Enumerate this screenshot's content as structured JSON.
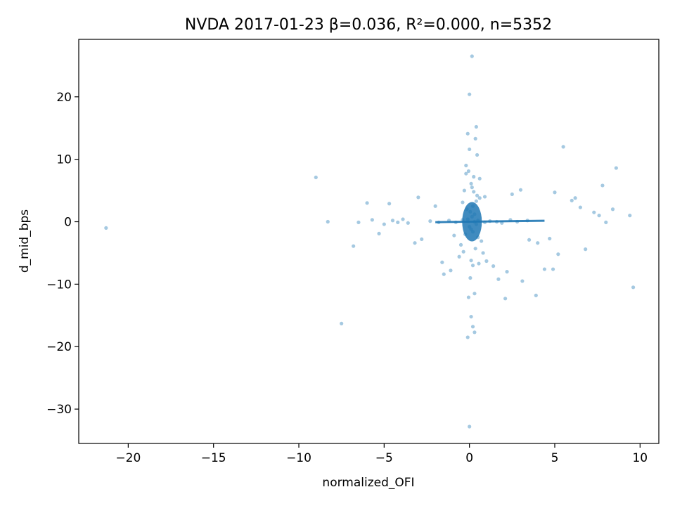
{
  "chart_data": {
    "type": "scatter",
    "title": "NVDA 2017-01-23  β=0.036, R²=0.000, n=5352",
    "xlabel": "normalized_OFI",
    "ylabel": "d_mid_bps",
    "xlim": [
      -22.9,
      11.1
    ],
    "ylim": [
      -35.5,
      29.2
    ],
    "xticks": [
      -20,
      -15,
      -10,
      -5,
      0,
      5,
      10
    ],
    "yticks": [
      -30,
      -20,
      -10,
      0,
      10,
      20
    ],
    "xtick_labels": [
      "−20",
      "−15",
      "−10",
      "−5",
      "0",
      "5",
      "10"
    ],
    "ytick_labels": [
      "−30",
      "−20",
      "−10",
      "0",
      "10",
      "20"
    ],
    "grid": false,
    "legend": "none",
    "marker_color": "#1f77b4",
    "marker_alpha": 0.4,
    "series": [
      {
        "x": [
          0.15,
          0.0,
          -0.1,
          0.4,
          5.5,
          -9.0,
          8.6,
          -21.3,
          -8.3,
          9.4,
          9.6,
          -7.5,
          7.8,
          2.1,
          3.1,
          3.9,
          4.4,
          4.9,
          5.0,
          6.2,
          6.5,
          7.6,
          8.0,
          8.4,
          -2.8,
          -4.2,
          -3.2,
          -6.8,
          -6.5,
          -5.7,
          -5.0,
          -4.5,
          -3.9,
          -3.6,
          -2.3,
          -1.8,
          -1.2,
          -0.8,
          -0.4,
          0.3,
          0.5,
          0.9,
          1.2,
          1.6,
          1.9,
          2.4,
          2.8,
          3.4,
          -0.1,
          0.0,
          0.1,
          0.2,
          0.3,
          0.35,
          -0.2,
          -0.05,
          0.25,
          0.1,
          -0.3,
          0.45,
          0.6,
          -0.4,
          0.2,
          -0.15,
          0.05,
          0.3,
          0.15,
          -0.1,
          0.4,
          0.0,
          0.1,
          0.2,
          -0.25,
          0.5,
          0.7,
          -0.5,
          0.35,
          0.8,
          -0.6,
          1.0,
          1.4,
          -1.1,
          -1.5,
          2.5,
          3.0,
          -2.0,
          4.0,
          4.7,
          5.2,
          6.0,
          6.8,
          7.3,
          -6.0,
          -5.3,
          -4.7,
          -3.0,
          1.7,
          -1.6,
          0.9,
          -0.9,
          2.2,
          3.5,
          0.05,
          -0.05,
          0.3,
          0.1,
          0.2,
          -0.2,
          0.45,
          0.0,
          0.6,
          0.15,
          -0.35,
          0.25,
          0.55,
          0.4
        ],
        "y": [
          26.5,
          20.4,
          14.1,
          15.2,
          12.0,
          7.1,
          8.6,
          -1.0,
          0.0,
          1.0,
          -10.5,
          -16.3,
          5.8,
          -12.3,
          -9.5,
          -11.8,
          -7.6,
          -7.6,
          4.7,
          3.8,
          2.3,
          1.0,
          -0.1,
          2.0,
          -2.8,
          -0.1,
          -3.4,
          -3.9,
          -0.1,
          0.3,
          -0.4,
          0.2,
          0.4,
          -0.2,
          0.1,
          -0.1,
          0.2,
          -0.1,
          0.3,
          0.0,
          0.2,
          -0.1,
          0.1,
          0.0,
          -0.2,
          0.3,
          0.0,
          0.2,
          -18.5,
          -32.8,
          -15.2,
          -16.8,
          -17.7,
          13.3,
          9.0,
          8.1,
          7.2,
          6.1,
          5.0,
          4.2,
          3.8,
          3.1,
          2.5,
          2.0,
          1.6,
          1.2,
          0.8,
          0.4,
          -0.4,
          -0.8,
          -1.2,
          -1.6,
          -2.0,
          -2.5,
          -3.1,
          -3.7,
          -4.3,
          -5.0,
          -5.6,
          -6.3,
          -7.1,
          -7.8,
          -8.4,
          4.4,
          5.1,
          2.5,
          -3.4,
          -2.7,
          -5.2,
          3.4,
          -4.4,
          1.5,
          3.0,
          -1.9,
          2.9,
          3.9,
          -9.2,
          -6.5,
          4.0,
          -2.2,
          -8.0,
          -2.9,
          -9.0,
          -12.1,
          -11.5,
          -6.2,
          -7.0,
          7.7,
          10.7,
          11.6,
          6.9,
          5.5,
          -4.8,
          4.8,
          -6.7,
          3.3
        ]
      }
    ],
    "regression_line": {
      "x": [
        -2.0,
        4.4
      ],
      "y": [
        -0.07,
        0.16
      ]
    }
  }
}
